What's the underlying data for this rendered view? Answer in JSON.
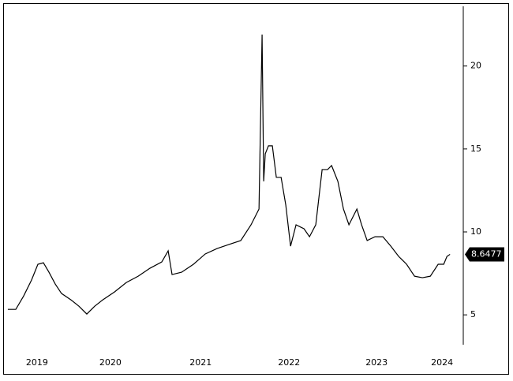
{
  "chart_data": {
    "type": "line",
    "x": [
      2019.33,
      2019.42,
      2019.509,
      2019.598,
      2019.67,
      2019.732,
      2019.795,
      2019.866,
      2019.937,
      2020.045,
      2020.134,
      2020.223,
      2020.312,
      2020.402,
      2020.536,
      2020.67,
      2020.804,
      2020.937,
      2021.071,
      2021.143,
      2021.187,
      2021.295,
      2021.429,
      2021.562,
      2021.696,
      2021.83,
      2021.964,
      2022.08,
      2022.17,
      2022.205,
      2022.223,
      2022.241,
      2022.277,
      2022.321,
      2022.366,
      2022.42,
      2022.473,
      2022.527,
      2022.589,
      2022.679,
      2022.741,
      2022.812,
      2022.884,
      2022.946,
      2022.991,
      2023.062,
      2023.125,
      2023.187,
      2023.277,
      2023.33,
      2023.393,
      2023.482,
      2023.571,
      2023.661,
      2023.75,
      2023.839,
      2023.929,
      2024.018,
      2024.107,
      2024.196,
      2024.259,
      2024.295,
      2024.33
    ],
    "values": [
      5.33,
      5.33,
      6.14,
      7.1,
      8.05,
      8.14,
      7.57,
      6.86,
      6.29,
      5.9,
      5.52,
      5.05,
      5.52,
      5.9,
      6.38,
      6.95,
      7.33,
      7.81,
      8.19,
      8.86,
      7.43,
      7.57,
      8.05,
      8.67,
      9.0,
      9.24,
      9.48,
      10.43,
      11.38,
      21.9,
      13.05,
      14.71,
      15.19,
      15.19,
      13.29,
      13.29,
      11.62,
      9.14,
      10.43,
      10.19,
      9.71,
      10.43,
      13.76,
      13.76,
      14.0,
      13.05,
      11.38,
      10.43,
      11.38,
      10.43,
      9.48,
      9.71,
      9.71,
      9.14,
      8.52,
      8.05,
      7.33,
      7.24,
      7.33,
      8.05,
      8.05,
      8.52,
      8.6477
    ],
    "color": "#000000",
    "xlim": [
      2019.286,
      2024.48
    ],
    "xticks": [
      {
        "value": 2019.66,
        "label": "2019"
      },
      {
        "value": 2020.49,
        "label": "2020"
      },
      {
        "value": 2021.51,
        "label": "2021"
      },
      {
        "value": 2022.51,
        "label": "2022"
      },
      {
        "value": 2023.5,
        "label": "2023"
      },
      {
        "value": 2024.24,
        "label": "2024"
      }
    ],
    "ylim": [
      3.2,
      23.6
    ],
    "yticks": [
      5,
      10,
      15,
      20
    ],
    "y_axis_side": "right"
  }
}
